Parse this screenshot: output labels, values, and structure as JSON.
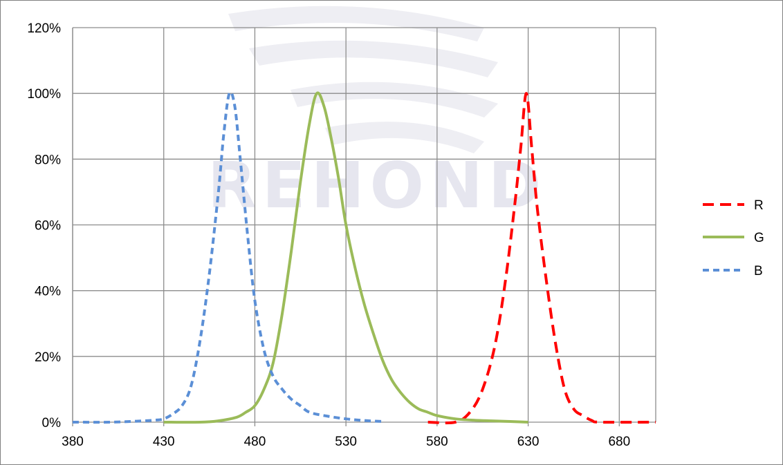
{
  "chart_data": {
    "type": "line",
    "title": "",
    "xlabel": "",
    "ylabel": "",
    "xlim": [
      380,
      700
    ],
    "ylim": [
      0,
      120
    ],
    "x_ticks": [
      380,
      430,
      480,
      530,
      580,
      630,
      680
    ],
    "y_ticks": [
      0,
      20,
      40,
      60,
      80,
      100,
      120
    ],
    "x_tick_labels": [
      "380",
      "430",
      "480",
      "530",
      "580",
      "630",
      "680"
    ],
    "y_tick_labels": [
      "0%",
      "20%",
      "40%",
      "60%",
      "80%",
      "100%",
      "120%"
    ],
    "grid": true,
    "legend_position": "right",
    "watermark": "REHOND",
    "series": [
      {
        "name": "R",
        "color": "#ff0000",
        "dash": "dashed",
        "points": [
          [
            575,
            0
          ],
          [
            590,
            0
          ],
          [
            598,
            3
          ],
          [
            605,
            10
          ],
          [
            612,
            24
          ],
          [
            618,
            45
          ],
          [
            623,
            68
          ],
          [
            626,
            84
          ],
          [
            629,
            100
          ],
          [
            632,
            83
          ],
          [
            635,
            65
          ],
          [
            640,
            43
          ],
          [
            645,
            24
          ],
          [
            650,
            10
          ],
          [
            655,
            4
          ],
          [
            660,
            2
          ],
          [
            665,
            0.5
          ],
          [
            670,
            0
          ],
          [
            700,
            0
          ]
        ]
      },
      {
        "name": "G",
        "color": "#9bbb59",
        "dash": "solid",
        "points": [
          [
            430,
            0
          ],
          [
            450,
            0
          ],
          [
            460,
            0.4
          ],
          [
            470,
            1.5
          ],
          [
            475,
            3
          ],
          [
            480,
            5
          ],
          [
            485,
            10
          ],
          [
            490,
            18
          ],
          [
            495,
            33
          ],
          [
            500,
            52
          ],
          [
            505,
            73
          ],
          [
            510,
            91
          ],
          [
            514,
            100
          ],
          [
            518,
            96
          ],
          [
            522,
            86
          ],
          [
            526,
            74
          ],
          [
            530,
            60
          ],
          [
            535,
            47
          ],
          [
            540,
            36
          ],
          [
            545,
            27
          ],
          [
            550,
            19
          ],
          [
            555,
            13
          ],
          [
            560,
            9
          ],
          [
            565,
            6
          ],
          [
            570,
            4
          ],
          [
            575,
            3
          ],
          [
            580,
            2
          ],
          [
            590,
            1
          ],
          [
            600,
            0.6
          ],
          [
            610,
            0.4
          ],
          [
            620,
            0.2
          ],
          [
            630,
            0
          ]
        ]
      },
      {
        "name": "B",
        "color": "#5b8fd6",
        "dash": "short-dashed",
        "points": [
          [
            380,
            0
          ],
          [
            400,
            0
          ],
          [
            415,
            0.3
          ],
          [
            425,
            0.6
          ],
          [
            430,
            1
          ],
          [
            435,
            2.5
          ],
          [
            440,
            5
          ],
          [
            445,
            11
          ],
          [
            450,
            25
          ],
          [
            455,
            45
          ],
          [
            460,
            70
          ],
          [
            463,
            88
          ],
          [
            466,
            100
          ],
          [
            469,
            96
          ],
          [
            472,
            80
          ],
          [
            476,
            57
          ],
          [
            480,
            37
          ],
          [
            485,
            22
          ],
          [
            490,
            14
          ],
          [
            495,
            10
          ],
          [
            500,
            7
          ],
          [
            505,
            5
          ],
          [
            510,
            3
          ],
          [
            520,
            1.8
          ],
          [
            530,
            1
          ],
          [
            540,
            0.5
          ],
          [
            550,
            0.2
          ]
        ]
      }
    ]
  }
}
